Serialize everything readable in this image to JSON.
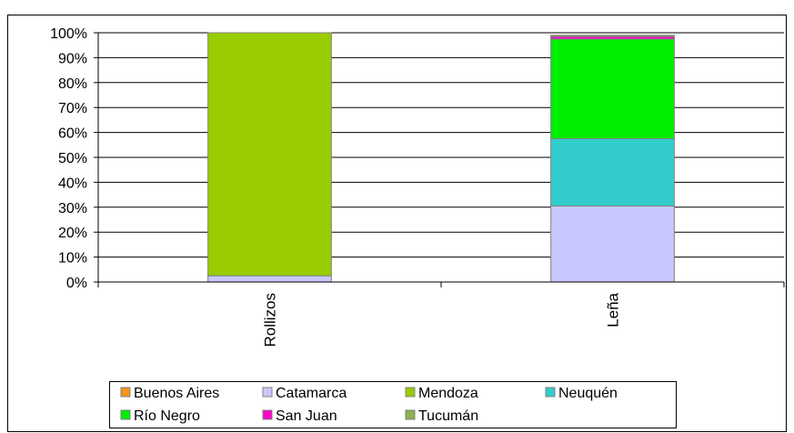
{
  "chart_data": {
    "type": "bar",
    "stacked": true,
    "percent": true,
    "categories": [
      "Rollizos",
      "Leña"
    ],
    "ylim": [
      0,
      100
    ],
    "yticks": [
      "0%",
      "10%",
      "20%",
      "30%",
      "40%",
      "50%",
      "60%",
      "70%",
      "80%",
      "90%",
      "100%"
    ],
    "grid": true,
    "legend_position": "bottom",
    "series": [
      {
        "name": "Buenos Aires",
        "color": "#F7941D",
        "values": [
          0,
          0
        ]
      },
      {
        "name": "Catamarca",
        "color": "#C8C8FF",
        "values": [
          2.5,
          30.5
        ]
      },
      {
        "name": "Mendoza",
        "color": "#99CC00",
        "values": [
          97.5,
          0
        ]
      },
      {
        "name": "Neuquén",
        "color": "#33CCCC",
        "values": [
          0,
          27
        ]
      },
      {
        "name": "Río Negro",
        "color": "#00EE00",
        "values": [
          0,
          40
        ]
      },
      {
        "name": "San Juan",
        "color": "#FF00CC",
        "values": [
          0,
          1
        ]
      },
      {
        "name": "Tucumán",
        "color": "#8DB050",
        "values": [
          0,
          0.5
        ]
      }
    ]
  }
}
